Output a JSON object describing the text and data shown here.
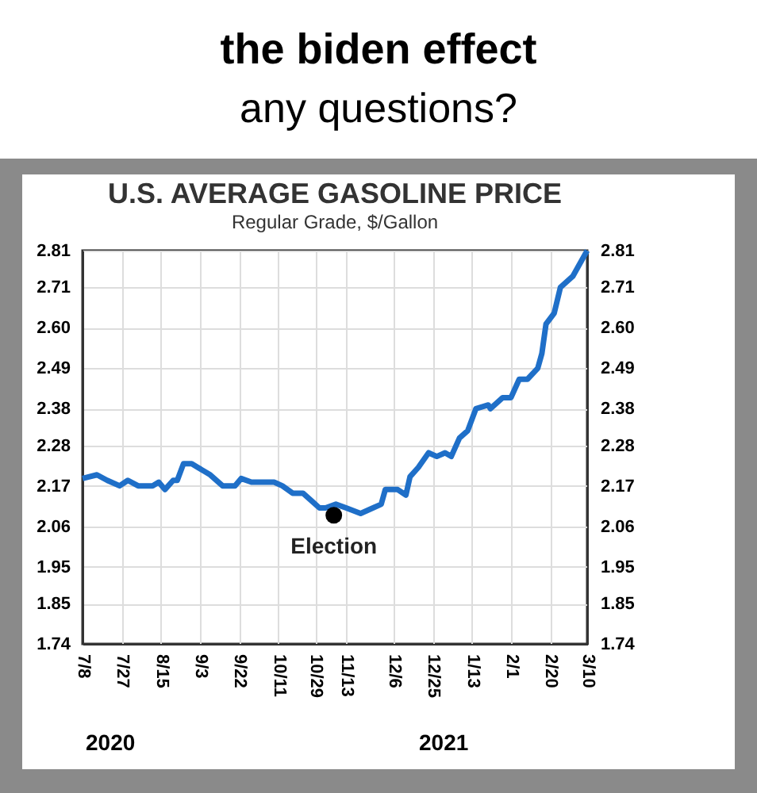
{
  "chart_data": {
    "type": "line",
    "title": "U.S. AVERAGE GASOLINE PRICE",
    "subtitle": "Regular Grade, $/Gallon",
    "annotations": [
      "the biden effect",
      "any questions?",
      {
        "text": "Election",
        "x": "2020-11-07",
        "y": 2.09
      },
      "2020",
      "2021"
    ],
    "x": [
      "2020-07-08",
      "2020-07-15",
      "2020-07-20",
      "2020-07-26",
      "2020-07-30",
      "2020-08-04",
      "2020-08-11",
      "2020-08-14",
      "2020-08-17",
      "2020-08-21",
      "2020-08-23",
      "2020-08-26",
      "2020-08-30",
      "2020-09-02",
      "2020-09-08",
      "2020-09-14",
      "2020-09-20",
      "2020-09-23",
      "2020-09-28",
      "2020-10-03",
      "2020-10-09",
      "2020-10-13",
      "2020-10-18",
      "2020-10-23",
      "2020-10-27",
      "2020-10-31",
      "2020-11-03",
      "2020-11-08",
      "2020-11-13",
      "2020-11-20",
      "2020-11-26",
      "2020-11-30",
      "2020-12-02",
      "2020-12-08",
      "2020-12-12",
      "2020-12-14",
      "2020-12-18",
      "2020-12-23",
      "2020-12-27",
      "2020-12-31",
      "2021-01-03",
      "2021-01-07",
      "2021-01-11",
      "2021-01-15",
      "2021-01-21",
      "2021-01-22",
      "2021-01-28",
      "2021-02-01",
      "2021-02-05",
      "2021-02-09",
      "2021-02-14",
      "2021-02-16",
      "2021-02-18",
      "2021-02-22",
      "2021-02-25",
      "2021-03-03",
      "2021-03-06",
      "2021-03-10"
    ],
    "series": [
      {
        "type": "line",
        "color": "#1f6fc8",
        "values": [
          2.19,
          2.2,
          2.185,
          2.17,
          2.185,
          2.17,
          2.17,
          2.18,
          2.16,
          2.185,
          2.185,
          2.23,
          2.23,
          2.22,
          2.2,
          2.17,
          2.17,
          2.19,
          2.18,
          2.18,
          2.18,
          2.17,
          2.15,
          2.15,
          2.13,
          2.11,
          2.11,
          2.12,
          2.11,
          2.095,
          2.11,
          2.12,
          2.16,
          2.16,
          2.145,
          2.195,
          2.22,
          2.26,
          2.25,
          2.26,
          2.25,
          2.3,
          2.32,
          2.38,
          2.39,
          2.38,
          2.41,
          2.41,
          2.46,
          2.46,
          2.49,
          2.53,
          2.61,
          2.64,
          2.71,
          2.74,
          2.77,
          2.81
        ]
      },
      {
        "type": "scatter",
        "axis": "y2",
        "marker": "circle",
        "color": "#000000",
        "x": [
          "2020-11-07"
        ],
        "values": [
          2.09
        ]
      }
    ],
    "xlim": [
      "2020-07-08",
      "2021-03-10"
    ],
    "xticks": [
      {
        "value": "2020-07-08",
        "label": "7/8"
      },
      {
        "value": "2020-07-27",
        "label": "7/27"
      },
      {
        "value": "2020-08-15",
        "label": "8/15"
      },
      {
        "value": "2020-09-03",
        "label": "9/3"
      },
      {
        "value": "2020-09-22",
        "label": "9/22"
      },
      {
        "value": "2020-10-11",
        "label": "10/11"
      },
      {
        "value": "2020-10-29",
        "label": "10/29"
      },
      {
        "value": "2020-11-13",
        "label": "11/13"
      },
      {
        "value": "2020-12-06",
        "label": "12/6"
      },
      {
        "value": "2020-12-25",
        "label": "12/25"
      },
      {
        "value": "2021-01-13",
        "label": "1/13"
      },
      {
        "value": "2021-02-01",
        "label": "2/1"
      },
      {
        "value": "2021-02-20",
        "label": "2/20"
      },
      {
        "value": "2021-03-10",
        "label": "3/10"
      }
    ],
    "ylim": [
      1.74,
      2.81
    ],
    "yticks": [
      1.74,
      1.85,
      1.95,
      2.06,
      2.17,
      2.28,
      2.38,
      2.49,
      {
        "value": 2.6,
        "label": "2.60"
      },
      2.71,
      2.81
    ],
    "y2lim": [
      1.74,
      2.81
    ],
    "y2ticks": [
      1.74,
      1.85,
      1.95,
      2.06,
      2.17,
      2.28,
      2.38,
      2.49,
      {
        "value": 2.6,
        "label": "2.60"
      },
      2.71,
      2.81
    ],
    "grid": true,
    "line_style": "solid"
  }
}
